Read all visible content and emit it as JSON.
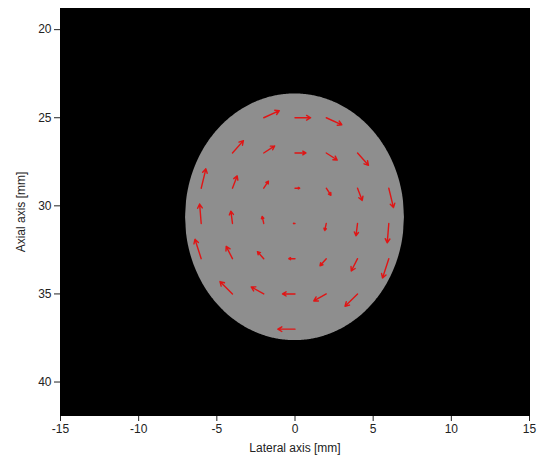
{
  "chart_data": {
    "type": "vector_field",
    "x_label": "Lateral axis [mm]",
    "y_label": "Axial axis [mm]",
    "xlim": [
      -15,
      15
    ],
    "xticks": [
      -15,
      -10,
      -5,
      0,
      5,
      10,
      15
    ],
    "ylim": [
      41.9,
      18.8
    ],
    "yticks": [
      20,
      25,
      30,
      35,
      40
    ],
    "disk": {
      "center": [
        0,
        30.65
      ],
      "radius": 7,
      "color": "#8e8e8e"
    },
    "vectors": {
      "color": "#e01515",
      "x": [
        -2,
        0,
        2,
        -4,
        -2,
        0,
        2,
        4,
        -6,
        -4,
        -2,
        0,
        2,
        4,
        6,
        -6,
        -4,
        -2,
        0,
        2,
        4,
        6,
        -6,
        -4,
        -2,
        0,
        2,
        4,
        6,
        -4,
        -2,
        0,
        2,
        4,
        0
      ],
      "y": [
        25,
        25,
        25,
        27,
        27,
        27,
        27,
        27,
        29,
        29,
        29,
        29,
        29,
        29,
        29,
        31,
        31,
        31,
        31,
        31,
        31,
        31,
        33,
        33,
        33,
        33,
        33,
        33,
        33,
        35,
        35,
        35,
        35,
        35,
        37
      ],
      "u": [
        1.0,
        1.0,
        1.0,
        0.7,
        0.7,
        0.7,
        0.7,
        0.7,
        0.3,
        0.3,
        0.3,
        0.3,
        0.3,
        0.3,
        0.3,
        -0.1,
        -0.1,
        -0.1,
        -0.1,
        -0.1,
        -0.1,
        -0.1,
        -0.4,
        -0.4,
        -0.4,
        -0.4,
        -0.4,
        -0.4,
        -0.4,
        -0.8,
        -0.8,
        -0.8,
        -0.8,
        -0.8,
        -1.1
      ],
      "v": [
        -0.4,
        0,
        0.4,
        -0.7,
        -0.4,
        0,
        0.4,
        0.7,
        -1.1,
        -0.7,
        -0.4,
        0,
        0.4,
        0.7,
        1.1,
        -1.1,
        -0.7,
        -0.4,
        0,
        0.4,
        0.7,
        1.1,
        -1.1,
        -0.7,
        -0.4,
        0,
        0.4,
        0.7,
        1.1,
        -0.7,
        -0.4,
        0,
        0.4,
        0.7,
        0
      ]
    }
  }
}
